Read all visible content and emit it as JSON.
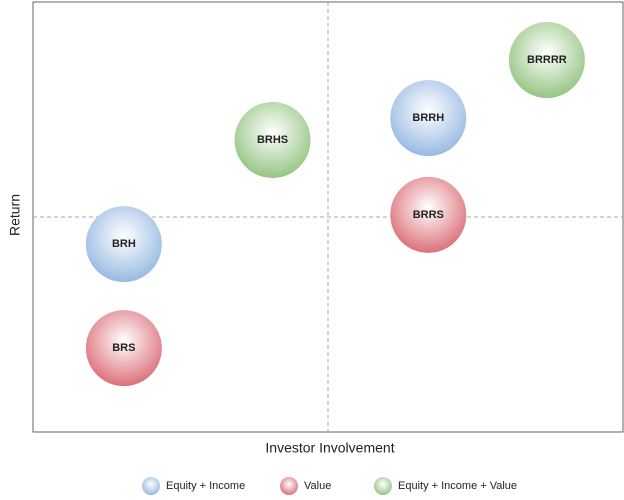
{
  "chart_data": {
    "type": "bubble",
    "x_label": "Investor Involvement",
    "y_label": "Return",
    "xlim": [
      0,
      10
    ],
    "ylim": [
      0,
      10
    ],
    "quadrant_lines": true,
    "series": [
      {
        "name": "Equity + Income",
        "color": "#8fb4e0",
        "x": [
          1.54,
          6.7
        ],
        "values": [
          4.37,
          7.3
        ],
        "labels": [
          "BRH",
          "BRRH"
        ]
      },
      {
        "name": "Value",
        "color": "#d9646e",
        "x": [
          1.54,
          6.7
        ],
        "values": [
          1.95,
          5.05
        ],
        "labels": [
          "BRS",
          "BRRS"
        ]
      },
      {
        "name": "Equity + Income + Value",
        "color": "#8dc07a",
        "x": [
          4.06,
          8.71
        ],
        "values": [
          6.79,
          8.65
        ],
        "labels": [
          "BRHS",
          "BRRRR"
        ]
      }
    ]
  }
}
